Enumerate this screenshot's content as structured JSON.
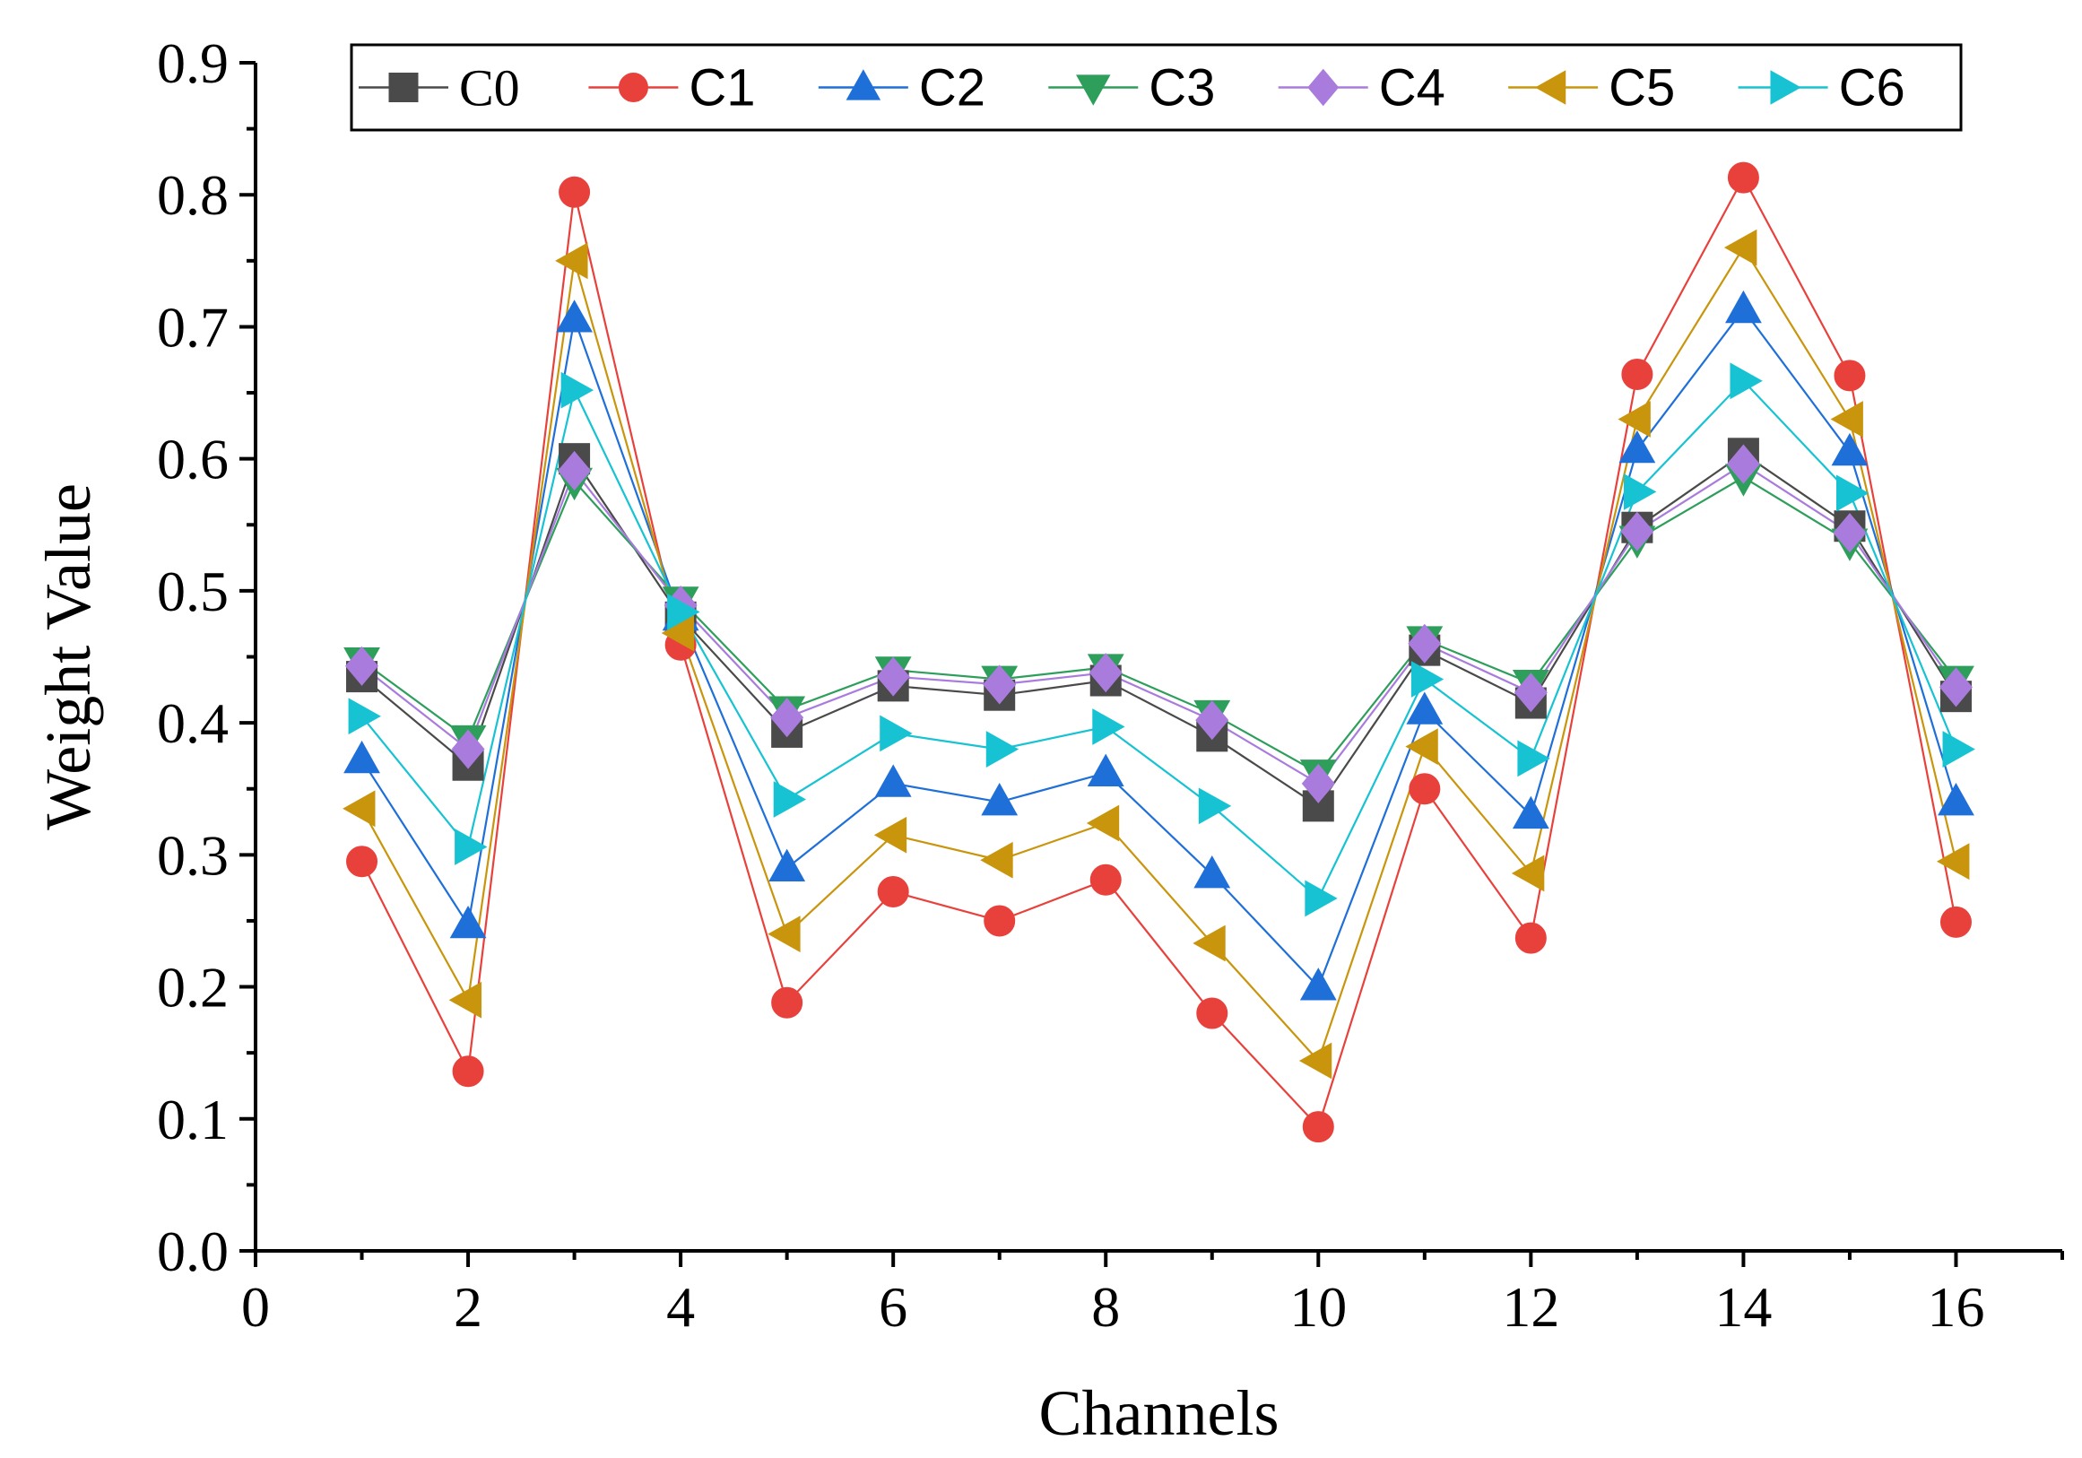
{
  "chart_data": {
    "type": "line",
    "title": "",
    "xlabel": "Channels",
    "ylabel": "Weight Value",
    "xlim": [
      0,
      17
    ],
    "ylim": [
      0,
      0.9
    ],
    "xticks": [
      0,
      2,
      4,
      6,
      8,
      10,
      12,
      14,
      16
    ],
    "xtick_labels": [
      "0",
      "2",
      "4",
      "6",
      "8",
      "10",
      "12",
      "14",
      "16"
    ],
    "yticks": [
      0,
      0.1,
      0.2,
      0.3,
      0.4,
      0.5,
      0.6,
      0.7,
      0.8,
      0.9
    ],
    "ytick_labels": [
      "0.0",
      "0.1",
      "0.2",
      "0.3",
      "0.4",
      "0.5",
      "0.6",
      "0.7",
      "0.8",
      "0.9"
    ],
    "legend_position": "top",
    "grid": false,
    "x": [
      1,
      2,
      3,
      4,
      5,
      6,
      7,
      8,
      9,
      10,
      11,
      12,
      13,
      14,
      15,
      16
    ],
    "series": [
      {
        "name": "C0",
        "color": "#4a4a4a",
        "marker": "square",
        "values": [
          0.435,
          0.368,
          0.6,
          0.48,
          0.393,
          0.428,
          0.421,
          0.432,
          0.39,
          0.337,
          0.455,
          0.415,
          0.548,
          0.604,
          0.549,
          0.42
        ]
      },
      {
        "name": "C1",
        "color": "#e8413c",
        "marker": "circle",
        "values": [
          0.295,
          0.136,
          0.802,
          0.459,
          0.188,
          0.272,
          0.25,
          0.281,
          0.18,
          0.094,
          0.35,
          0.237,
          0.664,
          0.813,
          0.663,
          0.249
        ]
      },
      {
        "name": "C2",
        "color": "#1f6fd8",
        "marker": "triangle-up",
        "values": [
          0.372,
          0.247,
          0.706,
          0.48,
          0.29,
          0.354,
          0.34,
          0.362,
          0.285,
          0.2,
          0.409,
          0.33,
          0.607,
          0.713,
          0.605,
          0.34
        ]
      },
      {
        "name": "C3",
        "color": "#2e9e5b",
        "marker": "triangle-down",
        "values": [
          0.447,
          0.388,
          0.583,
          0.493,
          0.41,
          0.44,
          0.433,
          0.442,
          0.407,
          0.362,
          0.463,
          0.43,
          0.539,
          0.586,
          0.537,
          0.433
        ]
      },
      {
        "name": "C4",
        "color": "#a97bdd",
        "marker": "diamond",
        "values": [
          0.443,
          0.38,
          0.591,
          0.489,
          0.404,
          0.435,
          0.429,
          0.438,
          0.402,
          0.354,
          0.46,
          0.423,
          0.545,
          0.596,
          0.544,
          0.427
        ]
      },
      {
        "name": "C5",
        "color": "#c9950c",
        "marker": "triangle-left",
        "values": [
          0.335,
          0.19,
          0.75,
          0.468,
          0.24,
          0.315,
          0.296,
          0.324,
          0.233,
          0.144,
          0.382,
          0.286,
          0.63,
          0.76,
          0.63,
          0.295
        ]
      },
      {
        "name": "C6",
        "color": "#17c3d2",
        "marker": "triangle-right",
        "values": [
          0.405,
          0.306,
          0.652,
          0.484,
          0.342,
          0.392,
          0.38,
          0.397,
          0.337,
          0.267,
          0.433,
          0.373,
          0.575,
          0.659,
          0.574,
          0.38
        ]
      }
    ]
  }
}
